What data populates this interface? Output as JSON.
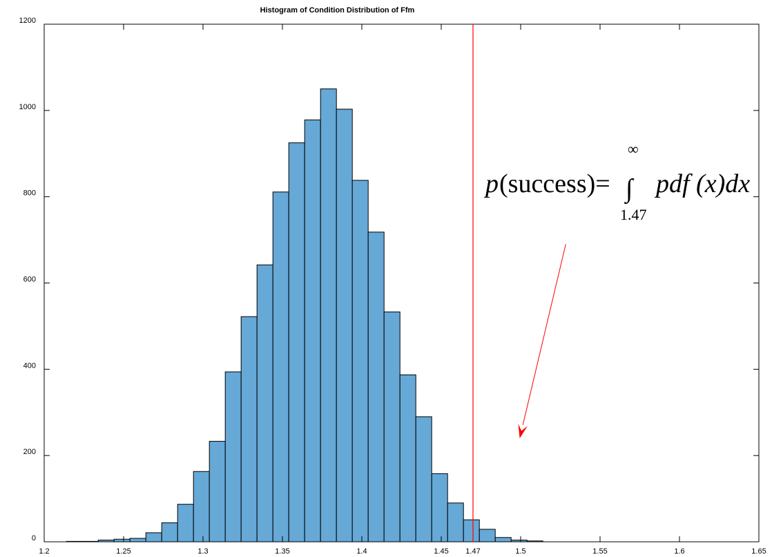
{
  "chart_data": {
    "type": "bar",
    "title": "Histogram  of Condition Distribution of Ffm",
    "xlabel": "",
    "ylabel": "",
    "xlim": [
      1.2,
      1.65
    ],
    "ylim": [
      0,
      1200
    ],
    "grid": false,
    "xticks": [
      1.2,
      1.25,
      1.3,
      1.35,
      1.4,
      1.45,
      1.47,
      1.5,
      1.55,
      1.6,
      1.65
    ],
    "xtick_labels": [
      "1.2",
      "1.25",
      "1.3",
      "1.35",
      "1.4",
      "1.45",
      "1.47",
      "1.5",
      "1.55",
      "1.6",
      "1.65"
    ],
    "yticks": [
      0,
      200,
      400,
      600,
      800,
      1000,
      1200
    ],
    "ytick_labels": [
      "0",
      "200",
      "400",
      "600",
      "800",
      "1000",
      "1200"
    ],
    "bin_width": 0.01,
    "bins": [
      {
        "x0": 1.214,
        "value": 1
      },
      {
        "x0": 1.224,
        "value": 1
      },
      {
        "x0": 1.234,
        "value": 4
      },
      {
        "x0": 1.244,
        "value": 6
      },
      {
        "x0": 1.254,
        "value": 8
      },
      {
        "x0": 1.264,
        "value": 21
      },
      {
        "x0": 1.274,
        "value": 44
      },
      {
        "x0": 1.284,
        "value": 87
      },
      {
        "x0": 1.294,
        "value": 163
      },
      {
        "x0": 1.304,
        "value": 233
      },
      {
        "x0": 1.314,
        "value": 394
      },
      {
        "x0": 1.324,
        "value": 522
      },
      {
        "x0": 1.334,
        "value": 642
      },
      {
        "x0": 1.344,
        "value": 811
      },
      {
        "x0": 1.354,
        "value": 925
      },
      {
        "x0": 1.364,
        "value": 978
      },
      {
        "x0": 1.374,
        "value": 1050
      },
      {
        "x0": 1.384,
        "value": 1003
      },
      {
        "x0": 1.394,
        "value": 838
      },
      {
        "x0": 1.404,
        "value": 718
      },
      {
        "x0": 1.414,
        "value": 533
      },
      {
        "x0": 1.424,
        "value": 387
      },
      {
        "x0": 1.434,
        "value": 290
      },
      {
        "x0": 1.444,
        "value": 158
      },
      {
        "x0": 1.454,
        "value": 90
      },
      {
        "x0": 1.464,
        "value": 51
      },
      {
        "x0": 1.474,
        "value": 29
      },
      {
        "x0": 1.484,
        "value": 10
      },
      {
        "x0": 1.494,
        "value": 4
      },
      {
        "x0": 1.504,
        "value": 2
      }
    ],
    "bar_color": "#66a8d6",
    "bar_edge_color": "#000000",
    "threshold": {
      "x": 1.47,
      "color": "#ff0000"
    },
    "annotation": {
      "formula_lhs": "p",
      "formula_success": "(success)=",
      "integral_symbol": "∫",
      "upper_limit": "∞",
      "lower_limit": "1.47",
      "integrand": "pdf (x)dx",
      "arrow_color": "#ff0000",
      "arrow_from": {
        "x": 1.5284,
        "y": 690
      },
      "arrow_to": {
        "x": 1.4994,
        "y": 240
      }
    }
  }
}
